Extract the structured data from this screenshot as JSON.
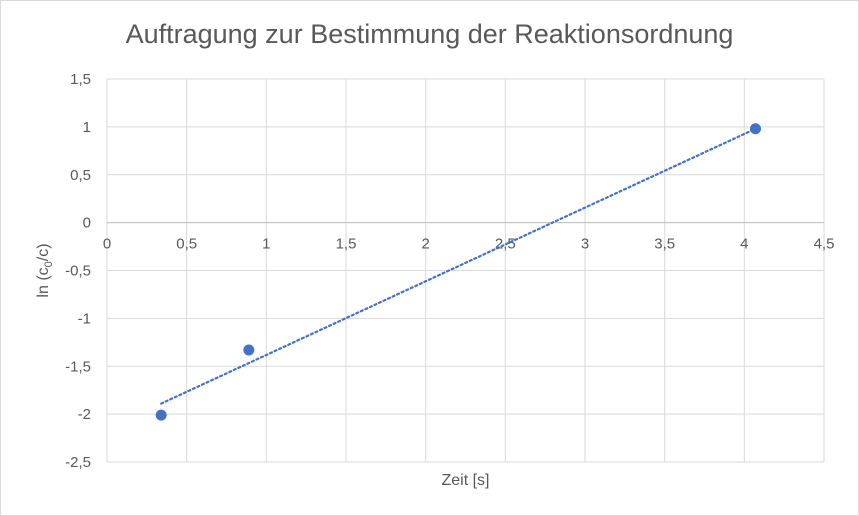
{
  "chart_data": {
    "type": "scatter",
    "title": "Auftragung zur Bestimmung der Reaktionsordnung",
    "xlabel": "Zeit [s]",
    "ylabel": "ln (c0/c)",
    "xlim": [
      0,
      4.5
    ],
    "ylim": [
      -2.5,
      1.5
    ],
    "x_major": 0.5,
    "y_major": 0.5,
    "x_tick_labels": [
      "0",
      "0,5",
      "1",
      "1,5",
      "2",
      "2,5",
      "3",
      "3,5",
      "4",
      "4,5"
    ],
    "y_tick_labels": [
      "1,5",
      "1",
      "0,5",
      "0",
      "-0,5",
      "-1",
      "-1,5",
      "-2",
      "-2,5"
    ],
    "grid": true,
    "legend": "none",
    "marker_color": "#4472C4",
    "trendline_color": "#4472C4",
    "trendline_style": "dotted",
    "series": [
      {
        "points": [
          {
            "x": 0.34,
            "y": -2.01
          },
          {
            "x": 0.89,
            "y": -1.33
          },
          {
            "x": 4.07,
            "y": 0.98
          }
        ],
        "trendline": {
          "type": "linear",
          "x_range": [
            0.34,
            4.07
          ],
          "y_range": [
            -1.89,
            0.98
          ]
        }
      }
    ]
  }
}
